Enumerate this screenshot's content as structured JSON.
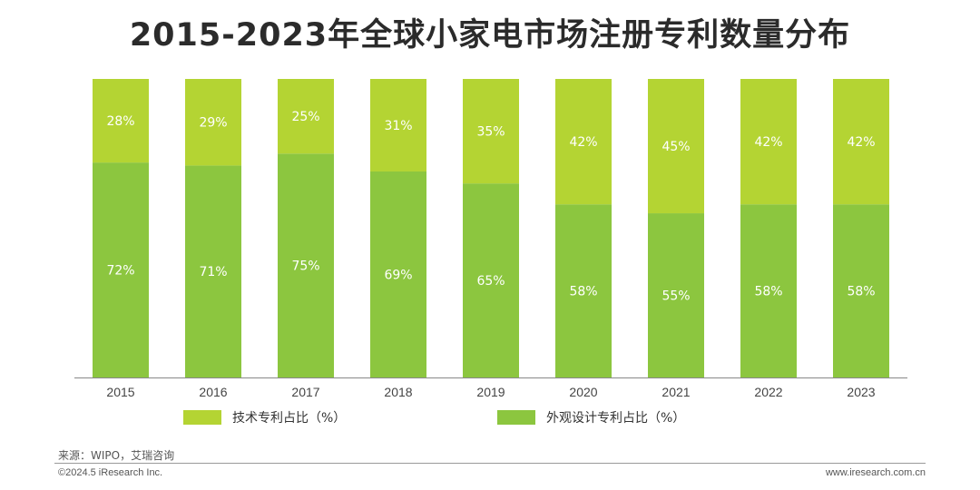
{
  "chart_data": {
    "type": "bar",
    "stacked": true,
    "title": "2015-2023年全球小家电市场注册专利数量分布",
    "categories": [
      "2015",
      "2016",
      "2017",
      "2018",
      "2019",
      "2020",
      "2021",
      "2022",
      "2023"
    ],
    "series": [
      {
        "name": "外观设计专利占比（%）",
        "values": [
          72,
          71,
          75,
          69,
          65,
          58,
          55,
          58,
          58
        ],
        "color": "#8cc63f"
      },
      {
        "name": "技术专利占比（%）",
        "values": [
          28,
          29,
          25,
          31,
          35,
          42,
          45,
          42,
          42
        ],
        "color": "#b4d433"
      }
    ],
    "ylim": [
      0,
      100
    ],
    "value_suffix": "%",
    "legend_position": "bottom",
    "grid": false
  },
  "legend": {
    "items": [
      {
        "label": "技术专利占比（%）",
        "color": "#b4d433"
      },
      {
        "label": "外观设计专利占比（%）",
        "color": "#8cc63f"
      }
    ]
  },
  "footer": {
    "source": "来源：WIPO，艾瑞咨询",
    "copyright": "©2024.5 iResearch Inc.",
    "website": "www.iresearch.com.cn"
  }
}
